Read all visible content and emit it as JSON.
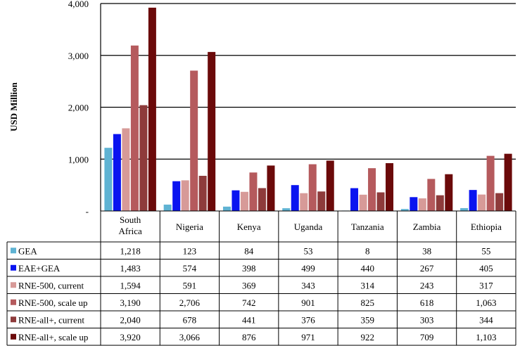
{
  "chart_data": {
    "type": "bar",
    "title": "",
    "xlabel": "",
    "ylabel": "USD Million",
    "ylim": [
      0,
      4000
    ],
    "yticks": [
      "-",
      "1,000",
      "2,000",
      "3,000",
      "4,000"
    ],
    "grid": true,
    "legend": "table",
    "categories": [
      [
        "South",
        "Africa"
      ],
      [
        "Nigeria"
      ],
      [
        "Kenya"
      ],
      [
        "Uganda"
      ],
      [
        "Tanzania"
      ],
      [
        "Zambia"
      ],
      [
        "Ethiopia"
      ]
    ],
    "series": [
      {
        "name": "GEA",
        "color": "#5fb3d3",
        "values": [
          1218,
          123,
          84,
          53,
          8,
          38,
          55
        ],
        "labels": [
          "1,218",
          "123",
          "84",
          "53",
          "8",
          "38",
          "55"
        ]
      },
      {
        "name": "EAE+GEA",
        "color": "#0a14f0",
        "values": [
          1483,
          574,
          398,
          499,
          440,
          267,
          405
        ],
        "labels": [
          "1,483",
          "574",
          "398",
          "499",
          "440",
          "267",
          "405"
        ]
      },
      {
        "name": "RNE-500, current",
        "color": "#d79a98",
        "values": [
          1594,
          591,
          369,
          343,
          314,
          243,
          317
        ],
        "labels": [
          "1,594",
          "591",
          "369",
          "343",
          "314",
          "243",
          "317"
        ]
      },
      {
        "name": "RNE-500, scale up",
        "color": "#b55a5d",
        "values": [
          3190,
          2706,
          742,
          901,
          825,
          618,
          1063
        ],
        "labels": [
          "3,190",
          "2,706",
          "742",
          "901",
          "825",
          "618",
          "1,063"
        ]
      },
      {
        "name": "RNE-all+, current",
        "color": "#8e3b3b",
        "values": [
          2040,
          678,
          441,
          376,
          359,
          303,
          344
        ],
        "labels": [
          "2,040",
          "678",
          "441",
          "376",
          "359",
          "303",
          "344"
        ]
      },
      {
        "name": "RNE-all+, scale up",
        "color": "#6b0a0a",
        "values": [
          3920,
          3066,
          876,
          971,
          922,
          709,
          1103
        ],
        "labels": [
          "3,920",
          "3,066",
          "876",
          "971",
          "922",
          "709",
          "1,103"
        ]
      }
    ]
  }
}
